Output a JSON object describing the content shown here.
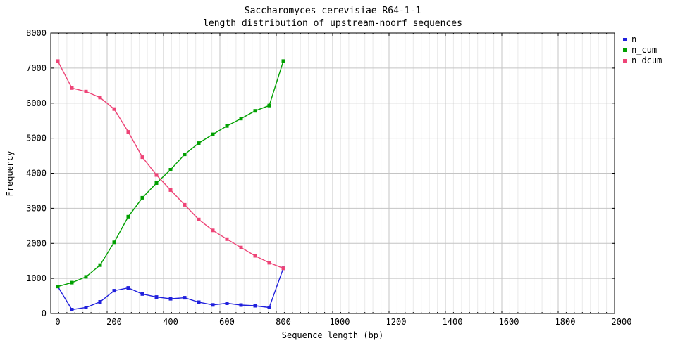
{
  "title": {
    "line1": "Saccharomyces cerevisiae R64-1-1",
    "line2": "length distribution of upstream-noorf sequences"
  },
  "axes": {
    "xlabel": "Sequence length (bp)",
    "ylabel": "Frequency"
  },
  "legend": {
    "items": [
      "n",
      "n_cum",
      "n_dcum"
    ],
    "position": "top-right-outside"
  },
  "chart_data": {
    "type": "line",
    "title": "Saccharomyces cerevisiae R64-1-1 — length distribution of upstream-noorf sequences",
    "xlabel": "Sequence length (bp)",
    "ylabel": "Frequency",
    "xlim": [
      0,
      2000
    ],
    "ylim": [
      0,
      8000
    ],
    "xticks": [
      0,
      200,
      400,
      600,
      800,
      1000,
      1200,
      1400,
      1600,
      1800,
      2000
    ],
    "yticks": [
      0,
      1000,
      2000,
      3000,
      4000,
      5000,
      6000,
      7000,
      8000
    ],
    "minor_x_subdivisions": 7,
    "grid": true,
    "x": [
      25,
      75,
      125,
      175,
      225,
      275,
      325,
      375,
      425,
      475,
      525,
      575,
      625,
      675,
      725,
      775,
      825
    ],
    "series": [
      {
        "name": "n",
        "color": "#2020dd",
        "values": [
          770,
          110,
          170,
          330,
          650,
          730,
          555,
          470,
          420,
          450,
          320,
          245,
          290,
          240,
          220,
          170,
          1290
        ]
      },
      {
        "name": "n_cum",
        "color": "#00a000",
        "values": [
          770,
          880,
          1045,
          1380,
          2030,
          2760,
          3300,
          3720,
          4100,
          4540,
          4860,
          5110,
          5350,
          5560,
          5780,
          5930,
          7200
        ]
      },
      {
        "name": "n_dcum",
        "color": "#ee4477",
        "values": [
          7200,
          6430,
          6330,
          6160,
          5830,
          5180,
          4460,
          3950,
          3520,
          3100,
          2680,
          2370,
          2120,
          1880,
          1645,
          1445,
          1290
        ]
      }
    ],
    "style": {
      "frame_color": "#000000",
      "major_grid_color": "#c4c4c4",
      "minor_grid_color": "#eaeaea",
      "background": "#ffffff",
      "marker": "square",
      "marker_size": 5
    }
  }
}
